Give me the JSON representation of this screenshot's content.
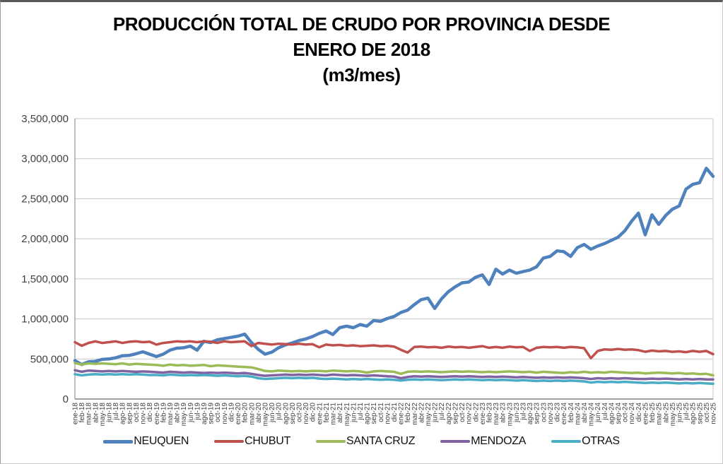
{
  "chart_data": {
    "type": "line",
    "title": {
      "line1": "PRODUCCIÓN TOTAL DE CRUDO POR PROVINCIA DESDE",
      "line2": "ENERO DE 2018",
      "line3": "(m3/mes)"
    },
    "ylabel": "",
    "xlabel": "",
    "ylim": [
      0,
      3500000
    ],
    "ytick_interval": 500000,
    "ytick_labels": [
      "0",
      "500,000",
      "1,000,000",
      "1,500,000",
      "2,000,000",
      "2,500,000",
      "3,000,000",
      "3,500,000"
    ],
    "grid": true,
    "legend_position": "bottom",
    "x_categories": [
      "ene-18",
      "feb-18",
      "mar-18",
      "abr-18",
      "may-18",
      "jun-18",
      "jul-18",
      "ago-18",
      "sep-18",
      "oct-18",
      "nov-18",
      "dic-18",
      "ene-19",
      "feb-19",
      "mar-19",
      "abr-19",
      "may-19",
      "jun-19",
      "jul-19",
      "ago-19",
      "sep-19",
      "oct-19",
      "nov-19",
      "dic-19",
      "ene-20",
      "feb-20",
      "mar-20",
      "abr-20",
      "may-20",
      "jun-20",
      "jul-20",
      "ago-20",
      "sep-20",
      "oct-20",
      "nov-20",
      "dic-20",
      "ene-21",
      "feb-21",
      "mar-21",
      "abr-21",
      "may-21",
      "jun-21",
      "jul-21",
      "ago-21",
      "sep-21",
      "oct-21",
      "nov-21",
      "dic-21",
      "ene-22",
      "feb-22",
      "mar-22",
      "abr-22",
      "may-22",
      "jun-22",
      "jul-22",
      "ago-22",
      "sep-22",
      "oct-22",
      "nov-22",
      "dic-22",
      "ene-23",
      "feb-23",
      "mar-23",
      "abr-23",
      "may-23",
      "jun-23",
      "jul-23",
      "ago-23",
      "sep-23",
      "oct-23",
      "nov-23",
      "dic-23",
      "ene-24",
      "feb-24",
      "mar-24",
      "abr-24",
      "may-24",
      "jun-24",
      "jul-24",
      "ago-24",
      "sep-24",
      "oct-24",
      "nov-24",
      "dic-24",
      "ene-25",
      "feb-25",
      "mar-25",
      "abr-25",
      "may-25",
      "jun-25",
      "jul-25",
      "ago-25",
      "sep-25",
      "oct-25",
      "nov-25"
    ],
    "series": [
      {
        "name": "NEUQUEN",
        "color": "#4F81BD",
        "stroke_width": 4.5,
        "values": [
          480000,
          430000,
          465000,
          470000,
          495000,
          500000,
          515000,
          540000,
          545000,
          565000,
          590000,
          560000,
          530000,
          560000,
          610000,
          635000,
          640000,
          660000,
          610000,
          720000,
          705000,
          740000,
          755000,
          770000,
          785000,
          810000,
          705000,
          620000,
          560000,
          585000,
          640000,
          675000,
          700000,
          730000,
          750000,
          780000,
          820000,
          850000,
          805000,
          890000,
          910000,
          890000,
          930000,
          910000,
          980000,
          970000,
          1005000,
          1030000,
          1080000,
          1110000,
          1180000,
          1240000,
          1260000,
          1130000,
          1250000,
          1340000,
          1400000,
          1450000,
          1460000,
          1520000,
          1550000,
          1430000,
          1620000,
          1560000,
          1610000,
          1570000,
          1590000,
          1610000,
          1650000,
          1760000,
          1780000,
          1850000,
          1840000,
          1780000,
          1890000,
          1930000,
          1870000,
          1910000,
          1940000,
          1980000,
          2020000,
          2100000,
          2220000,
          2320000,
          2050000,
          2300000,
          2180000,
          2290000,
          2370000,
          2410000,
          2620000,
          2680000,
          2700000,
          2880000,
          2780000
        ]
      },
      {
        "name": "CHUBUT",
        "color": "#C0504D",
        "stroke_width": 3.5,
        "values": [
          710000,
          665000,
          700000,
          720000,
          700000,
          710000,
          720000,
          700000,
          715000,
          720000,
          710000,
          715000,
          680000,
          700000,
          710000,
          720000,
          715000,
          720000,
          710000,
          720000,
          715000,
          700000,
          720000,
          710000,
          715000,
          720000,
          660000,
          700000,
          690000,
          680000,
          690000,
          685000,
          680000,
          690000,
          680000,
          685000,
          645000,
          680000,
          670000,
          675000,
          665000,
          670000,
          660000,
          665000,
          670000,
          660000,
          665000,
          655000,
          615000,
          580000,
          650000,
          655000,
          645000,
          650000,
          640000,
          655000,
          645000,
          650000,
          640000,
          650000,
          660000,
          640000,
          650000,
          640000,
          655000,
          645000,
          650000,
          600000,
          640000,
          650000,
          645000,
          650000,
          640000,
          650000,
          645000,
          635000,
          510000,
          600000,
          620000,
          615000,
          625000,
          615000,
          620000,
          610000,
          590000,
          605000,
          595000,
          600000,
          590000,
          595000,
          585000,
          600000,
          590000,
          600000,
          560000
        ]
      },
      {
        "name": "SANTA CRUZ",
        "color": "#9BBB59",
        "stroke_width": 3.5,
        "values": [
          450000,
          430000,
          445000,
          440000,
          445000,
          440000,
          435000,
          445000,
          430000,
          440000,
          435000,
          430000,
          425000,
          415000,
          430000,
          420000,
          425000,
          415000,
          420000,
          425000,
          410000,
          420000,
          415000,
          410000,
          405000,
          400000,
          395000,
          375000,
          350000,
          345000,
          355000,
          350000,
          345000,
          350000,
          345000,
          350000,
          350000,
          345000,
          355000,
          350000,
          345000,
          350000,
          345000,
          330000,
          345000,
          350000,
          345000,
          340000,
          315000,
          340000,
          345000,
          340000,
          345000,
          340000,
          335000,
          340000,
          345000,
          340000,
          345000,
          340000,
          335000,
          340000,
          335000,
          340000,
          345000,
          340000,
          335000,
          340000,
          330000,
          340000,
          335000,
          330000,
          325000,
          335000,
          330000,
          340000,
          330000,
          335000,
          330000,
          340000,
          335000,
          330000,
          325000,
          330000,
          320000,
          325000,
          330000,
          325000,
          320000,
          325000,
          315000,
          320000,
          310000,
          315000,
          295000
        ]
      },
      {
        "name": "MENDOZA",
        "color": "#8064A2",
        "stroke_width": 3.5,
        "values": [
          360000,
          340000,
          355000,
          350000,
          345000,
          350000,
          345000,
          350000,
          345000,
          340000,
          345000,
          340000,
          335000,
          330000,
          340000,
          335000,
          330000,
          335000,
          330000,
          325000,
          330000,
          325000,
          330000,
          325000,
          320000,
          325000,
          315000,
          300000,
          290000,
          295000,
          300000,
          305000,
          300000,
          305000,
          300000,
          305000,
          300000,
          295000,
          305000,
          300000,
          295000,
          300000,
          295000,
          290000,
          295000,
          290000,
          285000,
          280000,
          260000,
          275000,
          285000,
          280000,
          285000,
          280000,
          275000,
          280000,
          285000,
          280000,
          285000,
          280000,
          275000,
          280000,
          275000,
          280000,
          275000,
          270000,
          275000,
          270000,
          265000,
          270000,
          265000,
          270000,
          265000,
          270000,
          265000,
          260000,
          250000,
          260000,
          255000,
          260000,
          255000,
          260000,
          255000,
          250000,
          250000,
          255000,
          250000,
          255000,
          250000,
          245000,
          250000,
          245000,
          250000,
          245000,
          245000
        ]
      },
      {
        "name": "OTRAS",
        "color": "#4BACC6",
        "stroke_width": 3.5,
        "values": [
          310000,
          295000,
          305000,
          310000,
          305000,
          310000,
          305000,
          310000,
          305000,
          310000,
          305000,
          300000,
          300000,
          295000,
          305000,
          300000,
          295000,
          300000,
          295000,
          300000,
          295000,
          290000,
          295000,
          290000,
          285000,
          290000,
          280000,
          260000,
          250000,
          255000,
          260000,
          265000,
          260000,
          265000,
          260000,
          265000,
          255000,
          250000,
          255000,
          250000,
          245000,
          250000,
          245000,
          250000,
          245000,
          240000,
          245000,
          240000,
          230000,
          240000,
          245000,
          240000,
          245000,
          240000,
          235000,
          240000,
          245000,
          240000,
          245000,
          240000,
          235000,
          240000,
          235000,
          240000,
          235000,
          230000,
          235000,
          230000,
          225000,
          230000,
          225000,
          230000,
          225000,
          230000,
          225000,
          220000,
          205000,
          215000,
          210000,
          215000,
          210000,
          215000,
          210000,
          205000,
          200000,
          205000,
          200000,
          205000,
          200000,
          195000,
          200000,
          195000,
          200000,
          195000,
          190000
        ]
      }
    ],
    "style": {
      "gridline_color": "#C6C6C6",
      "axis_line_color": "#808080",
      "tick_label_color": "#3f3f3f",
      "background": "#ffffff"
    }
  }
}
